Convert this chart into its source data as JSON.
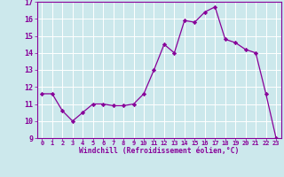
{
  "x": [
    0,
    1,
    2,
    3,
    4,
    5,
    6,
    7,
    8,
    9,
    10,
    11,
    12,
    13,
    14,
    15,
    16,
    17,
    18,
    19,
    20,
    21,
    22,
    23
  ],
  "y": [
    11.6,
    11.6,
    10.6,
    10.0,
    10.5,
    11.0,
    11.0,
    10.9,
    10.9,
    11.0,
    11.6,
    13.0,
    14.5,
    14.0,
    15.9,
    15.8,
    16.4,
    16.7,
    14.8,
    14.6,
    14.2,
    14.0,
    11.6,
    9.0
  ],
  "xlim": [
    0,
    23
  ],
  "ylim": [
    9,
    17
  ],
  "yticks": [
    9,
    10,
    11,
    12,
    13,
    14,
    15,
    16,
    17
  ],
  "xlabel": "Windchill (Refroidissement éolien,°C)",
  "line_color": "#880099",
  "marker_color": "#880099",
  "bg_color": "#cce8ec",
  "grid_color": "#aacccc",
  "tick_color": "#880099",
  "label_color": "#880099",
  "spine_color": "#880099"
}
